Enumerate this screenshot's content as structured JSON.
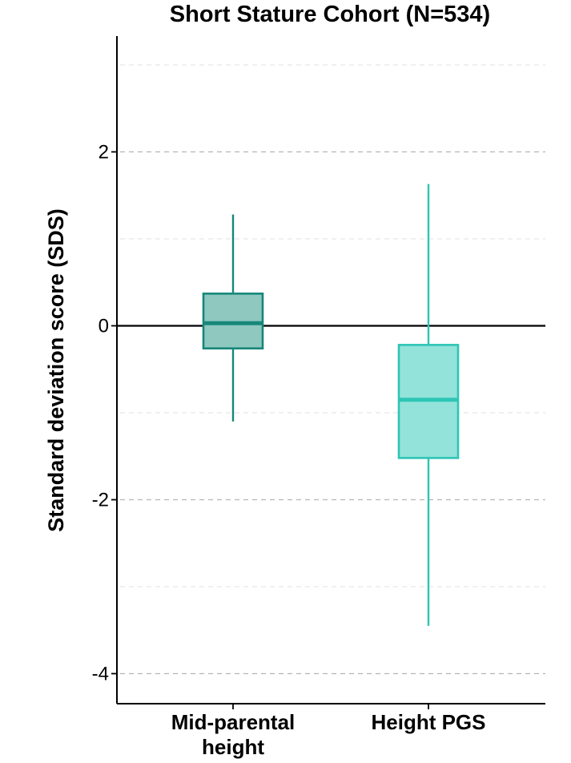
{
  "chart_data": {
    "type": "boxplot",
    "title": "Short Stature Cohort (N=534)",
    "xlabel": "",
    "ylabel": "Standard deviation score (SDS)",
    "ylim": [
      -4.3,
      3.35
    ],
    "yticks": [
      -4,
      -2,
      0,
      2
    ],
    "ytick_labels": [
      "-4",
      "-2",
      "0",
      "2"
    ],
    "minor_gridlines": [
      -3,
      -1,
      1,
      3
    ],
    "grid": "dashed horizontal",
    "reference_line": 0,
    "categories": [
      {
        "label_lines": [
          "Mid-parental",
          "height"
        ]
      },
      {
        "label_lines": [
          "Height PGS"
        ]
      }
    ],
    "series": [
      {
        "name": "Mid-parental height",
        "whisker_low": -1.1,
        "q1": -0.26,
        "median": 0.03,
        "q3": 0.37,
        "whisker_high": 1.28,
        "fill": "#8fc8bf",
        "stroke": "#17877a"
      },
      {
        "name": "Height PGS",
        "whisker_low": -3.45,
        "q1": -1.52,
        "median": -0.85,
        "q3": -0.22,
        "whisker_high": 1.63,
        "fill": "#93e3da",
        "stroke": "#2ec5b5"
      }
    ]
  }
}
